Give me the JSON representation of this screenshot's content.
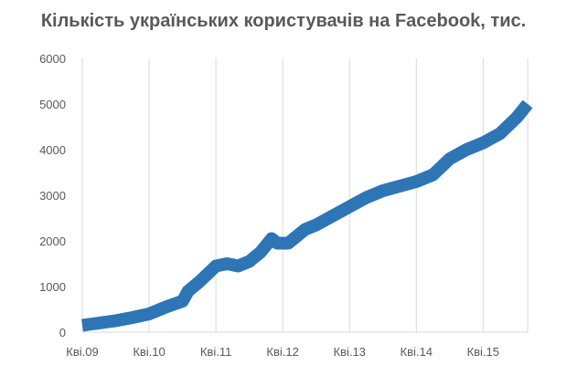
{
  "chart_data": {
    "type": "line",
    "title": "Кількість українських користувачів на Facebook, тис.",
    "xlabel": "",
    "ylabel": "",
    "ylim": [
      0,
      6000
    ],
    "yticks": [
      0,
      1000,
      2000,
      3000,
      4000,
      5000,
      6000
    ],
    "xlim": [
      "2009-04",
      "2015-12"
    ],
    "xticks": [
      {
        "label": "Кві.09",
        "value": "2009-04"
      },
      {
        "label": "Кві.10",
        "value": "2010-04"
      },
      {
        "label": "Кві.11",
        "value": "2011-04"
      },
      {
        "label": "Кві.12",
        "value": "2012-04"
      },
      {
        "label": "Кві.13",
        "value": "2013-04"
      },
      {
        "label": "Кві.14",
        "value": "2014-04"
      },
      {
        "label": "Кві.15",
        "value": "2015-04"
      }
    ],
    "grid": {
      "vertical": true,
      "horizontal": false
    },
    "legend": "none",
    "color": "#2E75B6",
    "series": [
      {
        "x": [
          "2009-04",
          "2009-10",
          "2010-01",
          "2010-04",
          "2010-07",
          "2010-10",
          "2010-11",
          "2011-01",
          "2011-04",
          "2011-06",
          "2011-08",
          "2011-10",
          "2011-12",
          "2012-02",
          "2012-03",
          "2012-05",
          "2012-08",
          "2012-10",
          "2013-01",
          "2013-04",
          "2013-07",
          "2013-10",
          "2014-01",
          "2014-04",
          "2014-07",
          "2014-10",
          "2015-01",
          "2015-04",
          "2015-07",
          "2015-10",
          "2015-12"
        ],
        "y": [
          150,
          250,
          320,
          400,
          550,
          680,
          900,
          1100,
          1450,
          1500,
          1450,
          1550,
          1750,
          2050,
          1950,
          1950,
          2250,
          2350,
          2550,
          2750,
          2950,
          3100,
          3200,
          3300,
          3450,
          3800,
          4000,
          4150,
          4350,
          4700,
          5000
        ]
      }
    ]
  }
}
